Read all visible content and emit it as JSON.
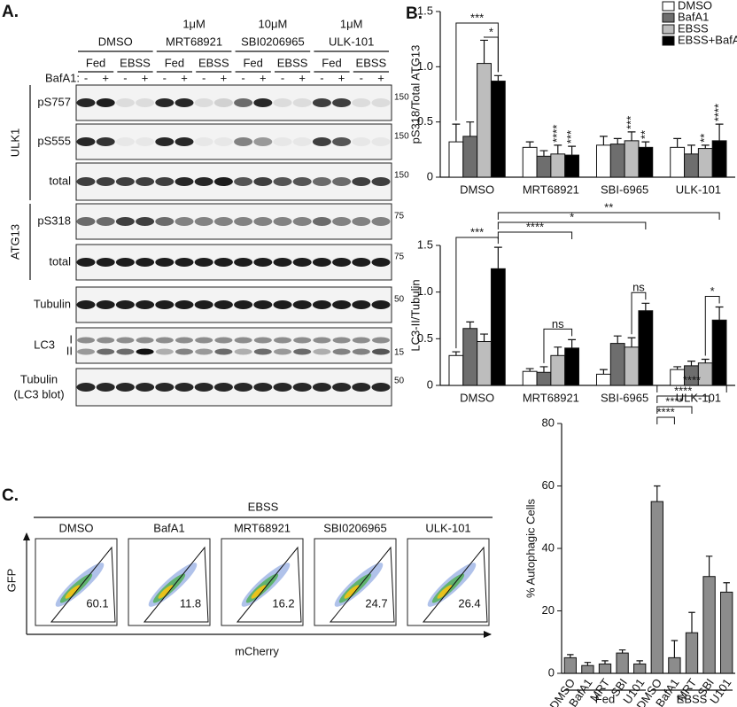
{
  "panel_a": {
    "label": "A.",
    "treatments": [
      {
        "name": "DMSO"
      },
      {
        "dose": "1μM",
        "name": "MRT68921"
      },
      {
        "dose": "10μM",
        "name": "SBI0206965"
      },
      {
        "dose": "1μM",
        "name": "ULK-101"
      }
    ],
    "conditions": [
      "Fed",
      "EBSS",
      "Fed",
      "EBSS",
      "Fed",
      "EBSS",
      "Fed",
      "EBSS"
    ],
    "bafa1_label": "BafA1:",
    "bafa1": [
      "-",
      "+",
      "-",
      "+",
      "-",
      "+",
      "-",
      "+",
      "-",
      "+",
      "-",
      "+",
      "-",
      "+",
      "-",
      "+"
    ],
    "blots": [
      {
        "group": "ULK1",
        "rows": [
          {
            "label": "pS757",
            "mw": 150
          },
          {
            "label": "pS555",
            "mw": 150
          },
          {
            "label": "total",
            "mw": 150
          }
        ]
      },
      {
        "group": "ATG13",
        "rows": [
          {
            "label": "pS318",
            "mw": 75
          },
          {
            "label": "total",
            "mw": 75
          }
        ]
      },
      {
        "rows": [
          {
            "label": "Tubulin",
            "mw": 50
          }
        ]
      },
      {
        "rows": [
          {
            "label": "LC3",
            "bands": [
              "I",
              "II"
            ],
            "mw": 15
          }
        ]
      },
      {
        "rows": [
          {
            "label": "Tubulin",
            "sublabel": "(LC3 blot)",
            "mw": 50
          }
        ]
      }
    ]
  },
  "chart_data": [
    {
      "type": "bar",
      "label": "B.",
      "ylabel": "pS318/Total ATG13",
      "categories": [
        "DMSO",
        "MRT68921",
        "SBI-6965",
        "ULK-101"
      ],
      "series": [
        {
          "name": "DMSO",
          "color": "#ffffff",
          "values": [
            0.32,
            0.27,
            0.29,
            0.27
          ],
          "errors": [
            0.16,
            0.05,
            0.08,
            0.08
          ],
          "annotations": [
            null,
            null,
            null,
            null
          ]
        },
        {
          "name": "BafA1",
          "color": "#6e6e6e",
          "values": [
            0.37,
            0.19,
            0.3,
            0.21
          ],
          "errors": [
            0.13,
            0.05,
            0.05,
            0.08
          ],
          "annotations": [
            null,
            null,
            null,
            null
          ]
        },
        {
          "name": "EBSS",
          "color": "#bdbdbd",
          "values": [
            1.03,
            0.21,
            0.33,
            0.26
          ],
          "errors": [
            0.21,
            0.08,
            0.08,
            0.03
          ],
          "annotations": [
            null,
            "****",
            "***",
            "**"
          ]
        },
        {
          "name": "EBSS+BafA1",
          "color": "#000000",
          "values": [
            0.87,
            0.2,
            0.27,
            0.33
          ],
          "errors": [
            0.05,
            0.08,
            0.05,
            0.15
          ],
          "annotations": [
            null,
            "***",
            "**",
            "****"
          ]
        }
      ],
      "ylim": [
        0,
        1.5
      ],
      "yticks": [
        0,
        0.5,
        {
          "value": 1,
          "label": "1.0"
        },
        1.5
      ],
      "legend": "upper right",
      "comparisons": [
        {
          "label": "***"
        },
        {
          "label": "*"
        }
      ]
    },
    {
      "type": "bar",
      "ylabel": "LC3-II/Tubulin",
      "categories": [
        "DMSO",
        "MRT68921",
        "SBI-6965",
        "ULK-101"
      ],
      "series": [
        {
          "name": "DMSO",
          "color": "#ffffff",
          "values": [
            0.32,
            0.15,
            0.12,
            0.17
          ],
          "errors": [
            0.04,
            0.03,
            0.05,
            0.03
          ]
        },
        {
          "name": "BafA1",
          "color": "#6e6e6e",
          "values": [
            0.61,
            0.14,
            0.45,
            0.21
          ],
          "errors": [
            0.07,
            0.06,
            0.08,
            0.05
          ]
        },
        {
          "name": "EBSS",
          "color": "#bdbdbd",
          "values": [
            0.47,
            0.32,
            0.41,
            0.24
          ],
          "errors": [
            0.08,
            0.09,
            0.1,
            0.04
          ]
        },
        {
          "name": "EBSS+BafA1",
          "color": "#000000",
          "values": [
            1.25,
            0.4,
            0.8,
            0.7
          ],
          "errors": [
            0.23,
            0.09,
            0.08,
            0.14
          ]
        }
      ],
      "ylim": [
        0,
        1.5
      ],
      "yticks": [
        0,
        0.5,
        {
          "value": 1,
          "label": "1.0"
        },
        1.5
      ],
      "comparisons": [
        {
          "label": "***"
        },
        {
          "label": "****"
        },
        {
          "label": "*"
        },
        {
          "label": "**"
        },
        {
          "label": "ns"
        },
        {
          "label": "ns"
        },
        {
          "label": "*"
        }
      ]
    },
    {
      "type": "bar",
      "ylabel": "% Autophagic Cells",
      "categories": [
        "DMSO",
        "BafA1",
        "MRT",
        "SBI",
        "U101",
        "DMSO",
        "BafA1",
        "MRT",
        "SBI",
        "U101"
      ],
      "category_groups": [
        "Fed",
        "EBSS"
      ],
      "values": [
        5,
        2.5,
        3,
        6.5,
        3,
        55,
        5,
        13,
        31,
        26
      ],
      "errors": [
        1,
        1,
        1,
        1,
        1,
        5,
        5.5,
        6.5,
        6.5,
        3
      ],
      "color": "#8c8c8c",
      "ylim": [
        0,
        80
      ],
      "yticks": [
        0,
        20,
        40,
        60,
        80
      ],
      "comparisons": [
        {
          "label": "****"
        },
        {
          "label": "****"
        },
        {
          "label": "****"
        },
        {
          "label": "****"
        }
      ]
    }
  ],
  "panel_c": {
    "label": "C.",
    "condition": "EBSS",
    "plots": [
      {
        "name": "DMSO",
        "percent": 60.1
      },
      {
        "name": "BafA1",
        "percent": 11.8
      },
      {
        "name": "MRT68921",
        "percent": 16.2
      },
      {
        "name": "SBI0206965",
        "percent": 24.7
      },
      {
        "name": "ULK-101",
        "percent": 26.4
      }
    ],
    "xlabel": "mCherry",
    "ylabel": "GFP"
  }
}
